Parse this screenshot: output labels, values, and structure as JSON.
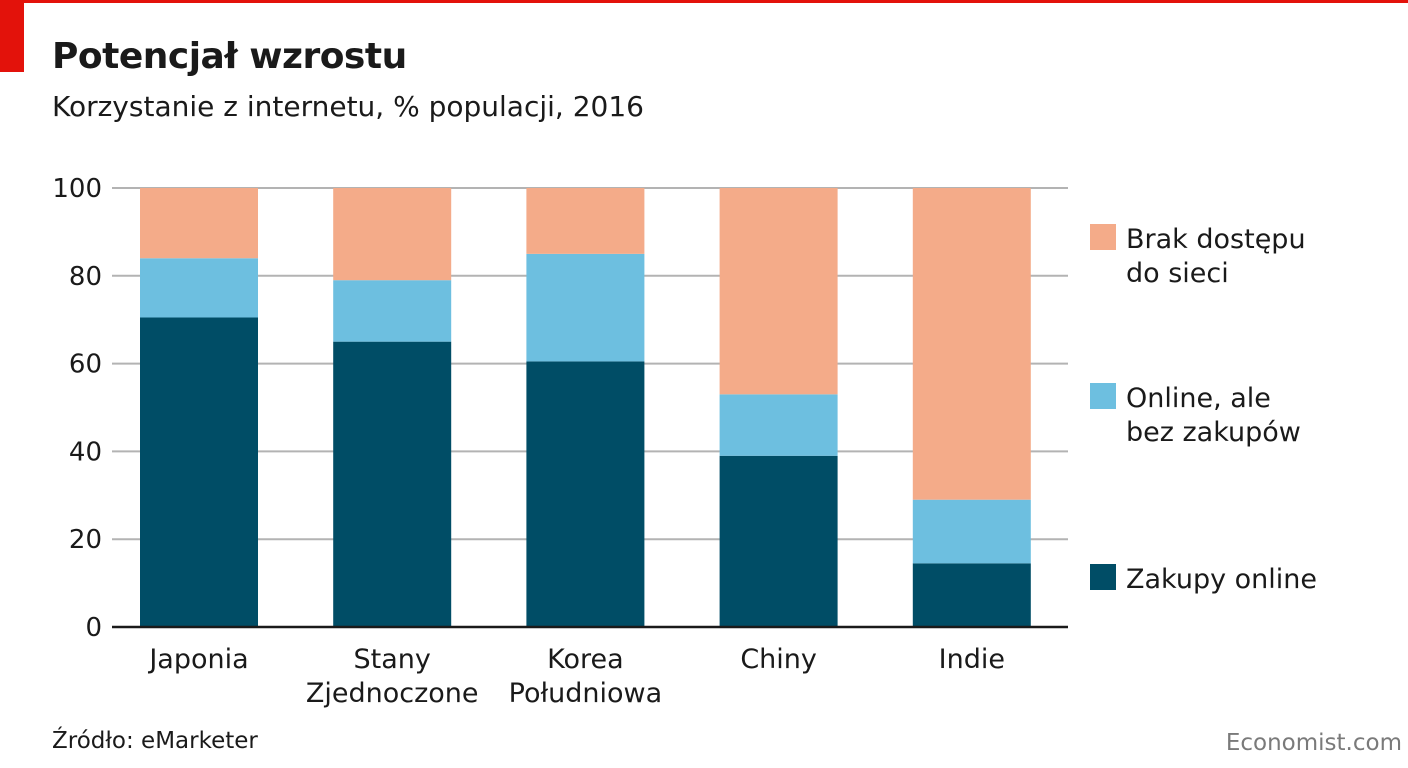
{
  "header": {
    "title": "Potencjał wzrostu",
    "subtitle": "Korzystanie z internetu, % populacji, 2016"
  },
  "footer": {
    "source": "Źródło: eMarketer",
    "brand": "Economist.com"
  },
  "colors": {
    "accent": "#e3120b",
    "grid": "#b3b3b3",
    "axis": "#1a1a1a"
  },
  "chart_data": {
    "type": "bar",
    "stacked": true,
    "categories": [
      [
        "Japonia"
      ],
      [
        "Stany",
        "Zjednoczone"
      ],
      [
        "Korea",
        "Południowa"
      ],
      [
        "Chiny"
      ],
      [
        "Indie"
      ]
    ],
    "series": [
      {
        "name": "Zakupy online",
        "color": "#004d66",
        "values": [
          70.5,
          65,
          60.5,
          39,
          14.5
        ]
      },
      {
        "name": "Online, ale bez zakupów",
        "color": "#6dbfe0",
        "values": [
          13.5,
          14,
          24.5,
          14,
          14.5
        ]
      },
      {
        "name": "Brak dostępu do sieci",
        "color": "#f4ab89",
        "values": [
          16,
          21,
          15,
          47,
          71
        ]
      }
    ],
    "legend": [
      {
        "lines": [
          "Brak dostępu",
          "do sieci"
        ],
        "color": "#f4ab89"
      },
      {
        "lines": [
          "Online, ale",
          "bez zakupów"
        ],
        "color": "#6dbfe0"
      },
      {
        "lines": [
          "Zakupy online"
        ],
        "color": "#004d66"
      }
    ],
    "yticks": [
      0,
      20,
      40,
      60,
      80,
      100
    ],
    "ylim": [
      0,
      100
    ],
    "grid": true,
    "legend_position": "right"
  }
}
